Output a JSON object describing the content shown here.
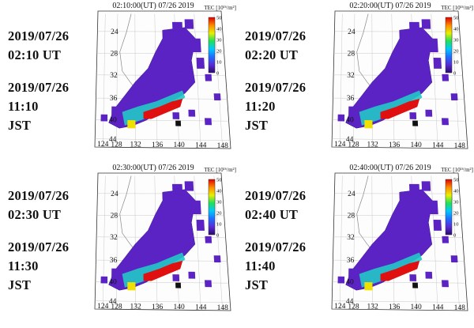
{
  "panels": [
    {
      "title": "02:10:00(UT)  07/26 2019",
      "date_ut": "2019/07/26",
      "time_ut": "02:10 UT",
      "date_jst": "2019/07/26",
      "time_jst": "11:10",
      "jst_label": "JST"
    },
    {
      "title": "02:20:00(UT)  07/26 2019",
      "date_ut": "2019/07/26",
      "time_ut": "02:20 UT",
      "date_jst": "2019/07/26",
      "time_jst": "11:20",
      "jst_label": "JST"
    },
    {
      "title": "02:30:00(UT)  07/26 2019",
      "date_ut": "2019/07/26",
      "time_ut": "02:30 UT",
      "date_jst": "2019/07/26",
      "time_jst": "11:30",
      "jst_label": "JST"
    },
    {
      "title": "02:40:00(UT)  07/26 2019",
      "date_ut": "2019/07/26",
      "time_ut": "02:40 UT",
      "date_jst": "2019/07/26",
      "time_jst": "11:40",
      "jst_label": "JST"
    }
  ],
  "colorbar": {
    "label": "TEC [10¹⁶/m²]",
    "ticks": [
      "0",
      "10",
      "20",
      "30",
      "40",
      "50"
    ],
    "stops": [
      "#2a0a6e",
      "#5a2bd6",
      "#1f6dff",
      "#00c8ff",
      "#1ee05a",
      "#e8f000",
      "#ff8a00",
      "#e00000"
    ]
  },
  "map": {
    "lat_ticks": [
      "24",
      "28",
      "32",
      "36",
      "40",
      "44"
    ],
    "lon_ticks": [
      "124",
      "128",
      "132",
      "136",
      "140",
      "144",
      "148"
    ],
    "land_color": "#5b22c4",
    "high_tec_color": "#e01010"
  }
}
